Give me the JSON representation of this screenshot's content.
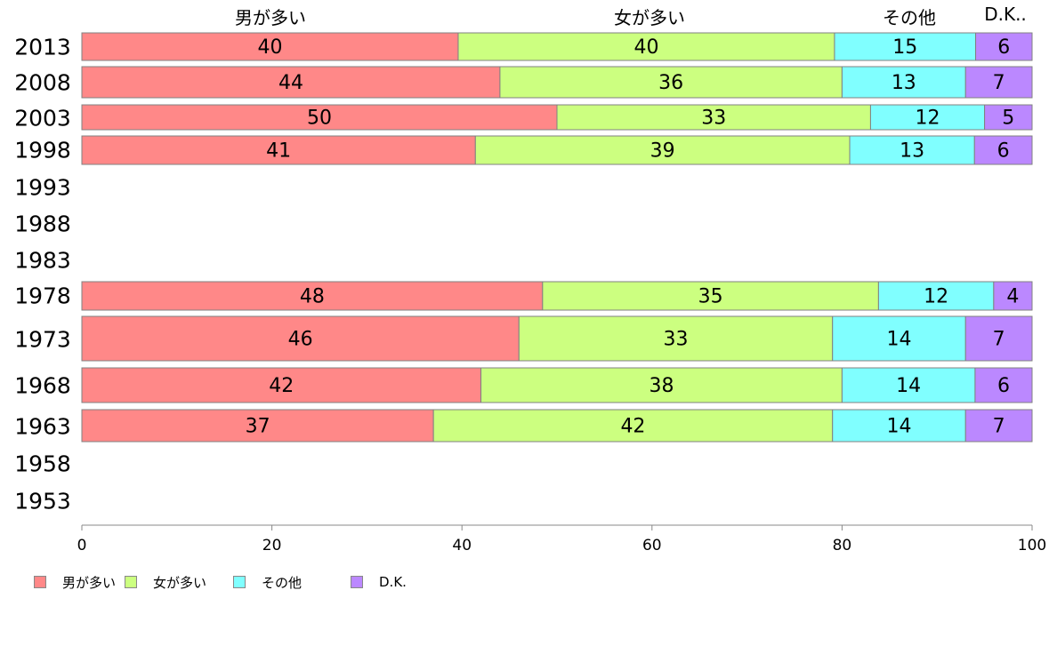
{
  "colors": {
    "男が多い": "#ff8888",
    "女が多い": "#ccff80",
    "その他": "#80ffff",
    "D.K.": "#bb88ff"
  },
  "header_labels": [
    "男が多い",
    "女が多い",
    "その他",
    "D.K.."
  ],
  "legend": [
    "男が多い",
    "女が多い",
    "その他",
    "D.K."
  ],
  "chart_data": {
    "type": "bar",
    "orientation": "horizontal",
    "stacked": true,
    "categories": [
      "2013",
      "2008",
      "2003",
      "1998",
      "1993",
      "1988",
      "1983",
      "1978",
      "1973",
      "1968",
      "1963",
      "1958",
      "1953"
    ],
    "series": [
      {
        "name": "男が多い",
        "values": [
          40,
          44,
          50,
          41,
          null,
          null,
          null,
          48,
          46,
          42,
          37,
          null,
          null
        ]
      },
      {
        "name": "女が多い",
        "values": [
          40,
          36,
          33,
          39,
          null,
          null,
          null,
          35,
          33,
          38,
          42,
          null,
          null
        ]
      },
      {
        "name": "その他",
        "values": [
          15,
          13,
          12,
          13,
          null,
          null,
          null,
          12,
          14,
          14,
          14,
          null,
          null
        ]
      },
      {
        "name": "D.K.",
        "values": [
          6,
          7,
          5,
          6,
          null,
          null,
          null,
          4,
          7,
          6,
          7,
          null,
          null
        ]
      }
    ],
    "xlim": [
      0,
      100
    ],
    "xticks": [
      0,
      20,
      40,
      60,
      80,
      100
    ],
    "grid": false,
    "legend_position": "bottom-left"
  }
}
